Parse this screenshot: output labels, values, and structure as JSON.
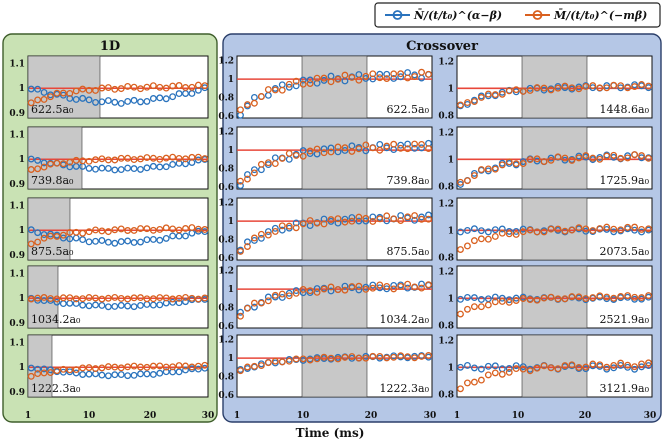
{
  "colors": {
    "series_n": "#2a73bd",
    "series_m": "#d9601f",
    "ref_line": "#e8473a",
    "shade": "#c8c8c8",
    "panel_1d": "#c9e2b4",
    "panel_crossover": "#b5c7e6"
  },
  "figure": {
    "xlabel": "Time (ms)",
    "legend": [
      {
        "key": "n",
        "label": "N̄/(t/t₀)^(α−β)"
      },
      {
        "key": "m",
        "label": "M̄/(t/t₀)^(−mβ)"
      }
    ]
  },
  "groups": [
    {
      "title": "1D",
      "xticks": [
        "1",
        "10",
        "20",
        "30"
      ],
      "yticks_1d": [
        "1.1",
        "1",
        "0.9"
      ]
    },
    {
      "title": "Crossover",
      "xticks_left": [
        "1",
        "10",
        "20",
        "30"
      ],
      "xticks_right": [
        "1",
        "10",
        "20",
        "30"
      ]
    }
  ],
  "chart_data": {
    "type": "scatter",
    "x_range": [
      1,
      31
    ],
    "series_names": [
      "N̄/(t/t₀)^(α−β)",
      "M̄/(t/t₀)^(−mβ)"
    ],
    "panels": [
      {
        "group": "1D",
        "label": "622.5a₀",
        "yticks": [
          "1.1",
          "1",
          "0.9"
        ],
        "ylim": [
          0.88,
          1.13
        ],
        "shade": [
          1,
          13
        ],
        "n_shape": "dip",
        "m_shape": "rise",
        "amp": 0.07
      },
      {
        "group": "1D",
        "label": "739.8a₀",
        "yticks": [
          "1.1",
          "1",
          "0.9"
        ],
        "ylim": [
          0.88,
          1.13
        ],
        "shade": [
          1,
          10
        ],
        "n_shape": "dip",
        "m_shape": "rise",
        "amp": 0.05
      },
      {
        "group": "1D",
        "label": "875.5a₀",
        "yticks": [
          "1.1",
          "1",
          "0.9"
        ],
        "ylim": [
          0.88,
          1.13
        ],
        "shade": [
          1,
          8
        ],
        "n_shape": "dip",
        "m_shape": "rise",
        "amp": 0.06
      },
      {
        "group": "1D",
        "label": "1034.2a₀",
        "yticks": [
          "1.1",
          "1",
          "0.9"
        ],
        "ylim": [
          0.88,
          1.13
        ],
        "shade": [
          1,
          6
        ],
        "n_shape": "dip",
        "m_shape": "flat",
        "amp": 0.04
      },
      {
        "group": "1D",
        "label": "1222.3a₀",
        "yticks": [
          "1.1",
          "1",
          "0.9"
        ],
        "ylim": [
          0.88,
          1.13
        ],
        "shade": [
          1,
          5
        ],
        "n_shape": "dip",
        "m_shape": "rise",
        "amp": 0.04
      },
      {
        "group": "Crossover-left",
        "label": "622.5a₀",
        "yticks": [
          "1.2",
          "1",
          "0.8",
          "0.6"
        ],
        "ylim": [
          0.58,
          1.25
        ],
        "shade": [
          11,
          21
        ],
        "n_shape": "rise",
        "m_shape": "rise",
        "amp": 0.4
      },
      {
        "group": "Crossover-left",
        "label": "739.8a₀",
        "yticks": [
          "1.2",
          "1",
          "0.8",
          "0.6"
        ],
        "ylim": [
          0.58,
          1.25
        ],
        "shade": [
          11,
          21
        ],
        "n_shape": "rise",
        "m_shape": "rise",
        "amp": 0.4
      },
      {
        "group": "Crossover-left",
        "label": "875.5a₀",
        "yticks": [
          "1.2",
          "1",
          "0.8",
          "0.6"
        ],
        "ylim": [
          0.58,
          1.25
        ],
        "shade": [
          11,
          21
        ],
        "n_shape": "rise",
        "m_shape": "rise",
        "amp": 0.35
      },
      {
        "group": "Crossover-left",
        "label": "1034.2a₀",
        "yticks": [
          "1.2",
          "1",
          "0.8",
          "0.6"
        ],
        "ylim": [
          0.58,
          1.25
        ],
        "shade": [
          11,
          21
        ],
        "n_shape": "rise",
        "m_shape": "rise",
        "amp": 0.3
      },
      {
        "group": "Crossover-left",
        "label": "1222.3a₀",
        "yticks": [
          "1.2",
          "1",
          "0.8",
          "0.6"
        ],
        "ylim": [
          0.58,
          1.25
        ],
        "shade": [
          11,
          21
        ],
        "n_shape": "rise",
        "m_shape": "rise",
        "amp": 0.15
      },
      {
        "group": "Crossover-right",
        "label": "1448.6a₀",
        "yticks": [
          "1.2",
          "1",
          "0.8"
        ],
        "ylim": [
          0.78,
          1.24
        ],
        "shade": [
          11,
          21
        ],
        "n_shape": "rise",
        "m_shape": "rise",
        "amp": 0.15
      },
      {
        "group": "Crossover-right",
        "label": "1725.9a₀",
        "yticks": [
          "1.2",
          "1",
          "0.8"
        ],
        "ylim": [
          0.78,
          1.24
        ],
        "shade": [
          11,
          21
        ],
        "n_shape": "rise",
        "m_shape": "rise",
        "amp": 0.2
      },
      {
        "group": "Crossover-right",
        "label": "2073.5a₀",
        "yticks": [
          "1.2",
          "1",
          "0.8"
        ],
        "ylim": [
          0.78,
          1.24
        ],
        "shade": [
          11,
          21
        ],
        "n_shape": "flat",
        "m_shape": "rise",
        "amp": 0.15
      },
      {
        "group": "Crossover-right",
        "label": "2521.9a₀",
        "yticks": [
          "1.2",
          "1",
          "0.8"
        ],
        "ylim": [
          0.78,
          1.24
        ],
        "shade": [
          11,
          21
        ],
        "n_shape": "flat",
        "m_shape": "rise",
        "amp": 0.12
      },
      {
        "group": "Crossover-right",
        "label": "3121.9a₀",
        "yticks": [
          "1.2",
          "1",
          "0.8"
        ],
        "ylim": [
          0.78,
          1.24
        ],
        "shade": [
          11,
          21
        ],
        "n_shape": "flat",
        "m_shape": "rise",
        "amp": 0.18
      }
    ]
  }
}
